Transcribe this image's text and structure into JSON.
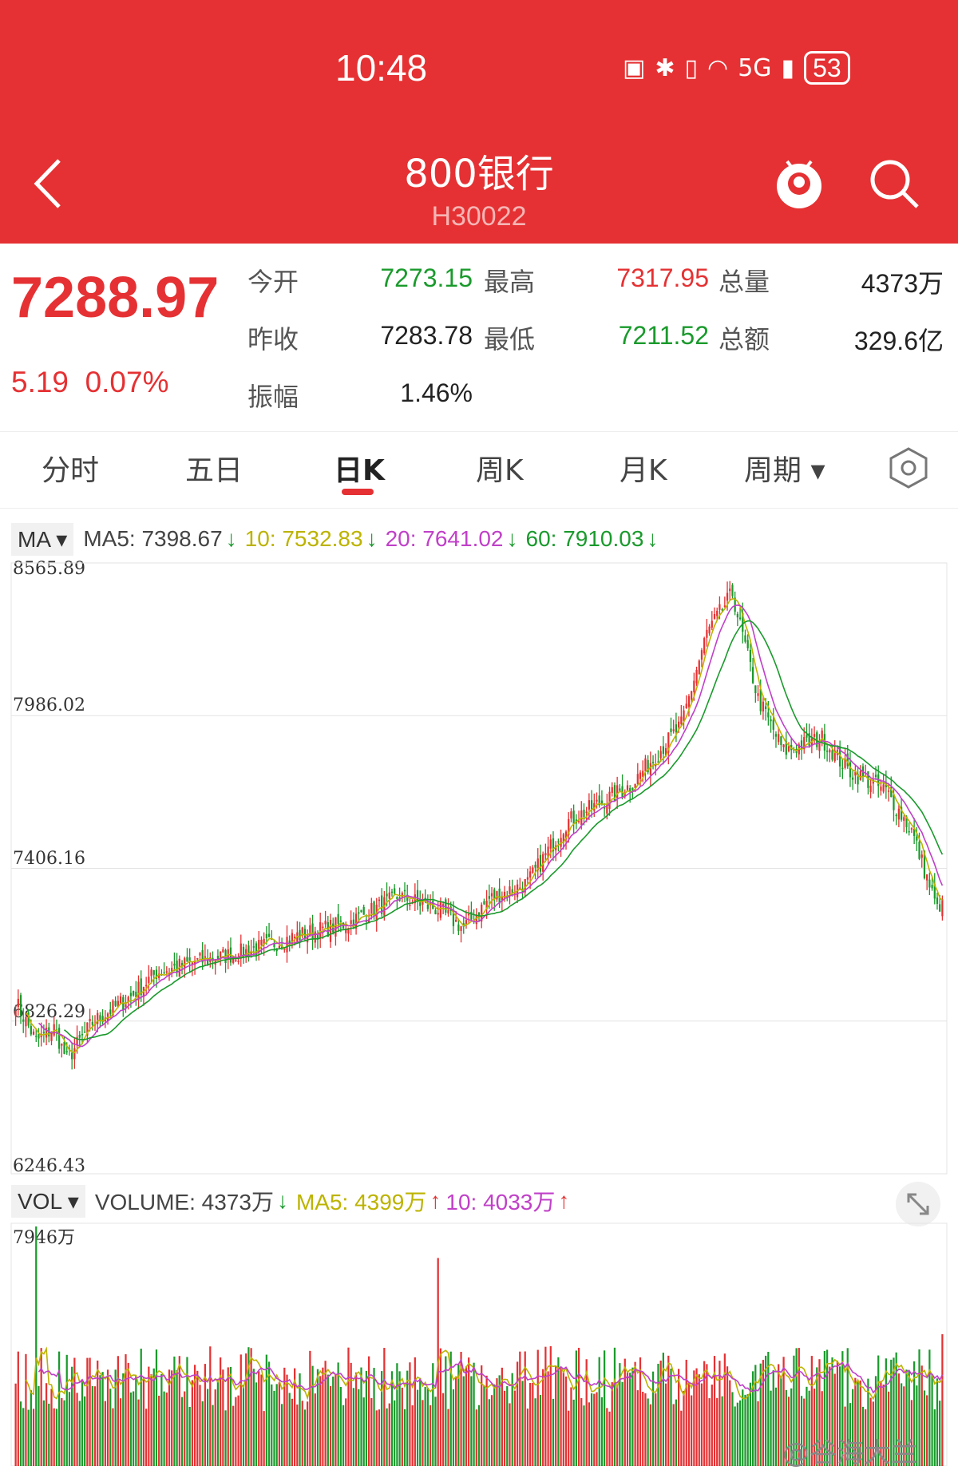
{
  "status_bar": {
    "time": "10:48",
    "network": "5G",
    "battery": "53"
  },
  "header": {
    "title": "800银行",
    "code": "H30022"
  },
  "quote": {
    "price": "7288.97",
    "change": "5.19",
    "change_pct": "0.07%",
    "labels": {
      "open": "今开",
      "prev_close": "昨收",
      "amplitude": "振幅",
      "high": "最高",
      "low": "最低",
      "volume": "总量",
      "amount": "总额"
    },
    "values": {
      "open": "7273.15",
      "prev_close": "7283.78",
      "amplitude": "1.46%",
      "high": "7317.95",
      "low": "7211.52",
      "volume": "4373万",
      "amount": "329.6亿"
    }
  },
  "tabs": [
    "分时",
    "五日",
    "日K",
    "周K",
    "月K",
    "周期"
  ],
  "active_tab": "日K",
  "indicators": {
    "ma_selector": "MA",
    "ma5": "MA5: 7398.67",
    "ma10": "10: 7532.83",
    "ma20": "20: 7641.02",
    "ma60": "60: 7910.03",
    "vol_selector": "VOL",
    "volume": "VOLUME: 4373万",
    "vol_ma5": "MA5: 4399万",
    "vol_ma10": "10: 4033万"
  },
  "colors": {
    "brand": "#e53133",
    "up": "#e53133",
    "down": "#1a9a2c",
    "ma5": "#bcb300",
    "ma10": "#c040c8",
    "ma20": "#1a9a2c"
  },
  "chart_data": {
    "type": "candlestick",
    "y_ticks": [
      "8565.89",
      "7986.02",
      "7406.16",
      "6826.29",
      "6246.43"
    ],
    "ylim": [
      6246.43,
      8565.89
    ],
    "vol_top_label": "7946万",
    "vol_max": 7946,
    "grid": true,
    "close_anchors": [
      [
        0,
        6900
      ],
      [
        8,
        6750
      ],
      [
        15,
        6800
      ],
      [
        20,
        6680
      ],
      [
        30,
        6820
      ],
      [
        45,
        6920
      ],
      [
        55,
        7010
      ],
      [
        70,
        7050
      ],
      [
        90,
        7090
      ],
      [
        110,
        7150
      ],
      [
        130,
        7200
      ],
      [
        150,
        7300
      ],
      [
        165,
        7250
      ],
      [
        175,
        7180
      ],
      [
        185,
        7290
      ],
      [
        200,
        7350
      ],
      [
        215,
        7580
      ],
      [
        240,
        7720
      ],
      [
        260,
        7950
      ],
      [
        270,
        8300
      ],
      [
        280,
        8450
      ],
      [
        290,
        8050
      ],
      [
        300,
        7850
      ],
      [
        315,
        7900
      ],
      [
        325,
        7780
      ],
      [
        340,
        7700
      ],
      [
        350,
        7550
      ],
      [
        360,
        7250
      ],
      [
        362,
        7289
      ]
    ],
    "last_close": 7288.97,
    "last_volume": 4373
  }
}
